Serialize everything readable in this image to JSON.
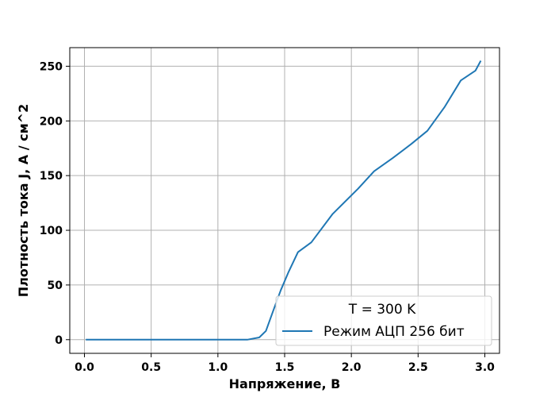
{
  "chart_data": {
    "type": "line",
    "title": "",
    "xlabel": "Напряжение, В",
    "ylabel": "Плотность тока J, А / см^2",
    "xlim": [
      -0.11,
      3.11
    ],
    "ylim": [
      -12.5,
      267
    ],
    "x_ticks": [
      0.0,
      0.5,
      1.0,
      1.5,
      2.0,
      2.5,
      3.0
    ],
    "x_tick_labels": [
      "0.0",
      "0.5",
      "1.0",
      "1.5",
      "2.0",
      "2.5",
      "3.0"
    ],
    "y_ticks": [
      0,
      50,
      100,
      150,
      200,
      250
    ],
    "y_tick_labels": [
      "0",
      "50",
      "100",
      "150",
      "200",
      "250"
    ],
    "grid": true,
    "legend": {
      "title": "T = 300 K",
      "position": "lower-right"
    },
    "series": [
      {
        "name": "Режим АЦП 256 бит",
        "color": "#1f77b4",
        "x": [
          0.01,
          0.12,
          0.24,
          0.36,
          0.48,
          0.6,
          0.72,
          0.84,
          0.96,
          1.08,
          1.22,
          1.31,
          1.36,
          1.41,
          1.47,
          1.53,
          1.6,
          1.7,
          1.86,
          2.05,
          2.17,
          2.31,
          2.45,
          2.57,
          2.7,
          2.82,
          2.93,
          2.97
        ],
        "y": [
          0,
          0,
          0,
          0,
          0,
          0,
          0,
          0,
          0,
          0,
          0,
          2,
          8,
          25,
          45,
          62,
          80,
          89,
          115,
          138,
          154,
          166,
          179,
          191,
          213,
          237,
          246,
          255
        ]
      }
    ]
  }
}
